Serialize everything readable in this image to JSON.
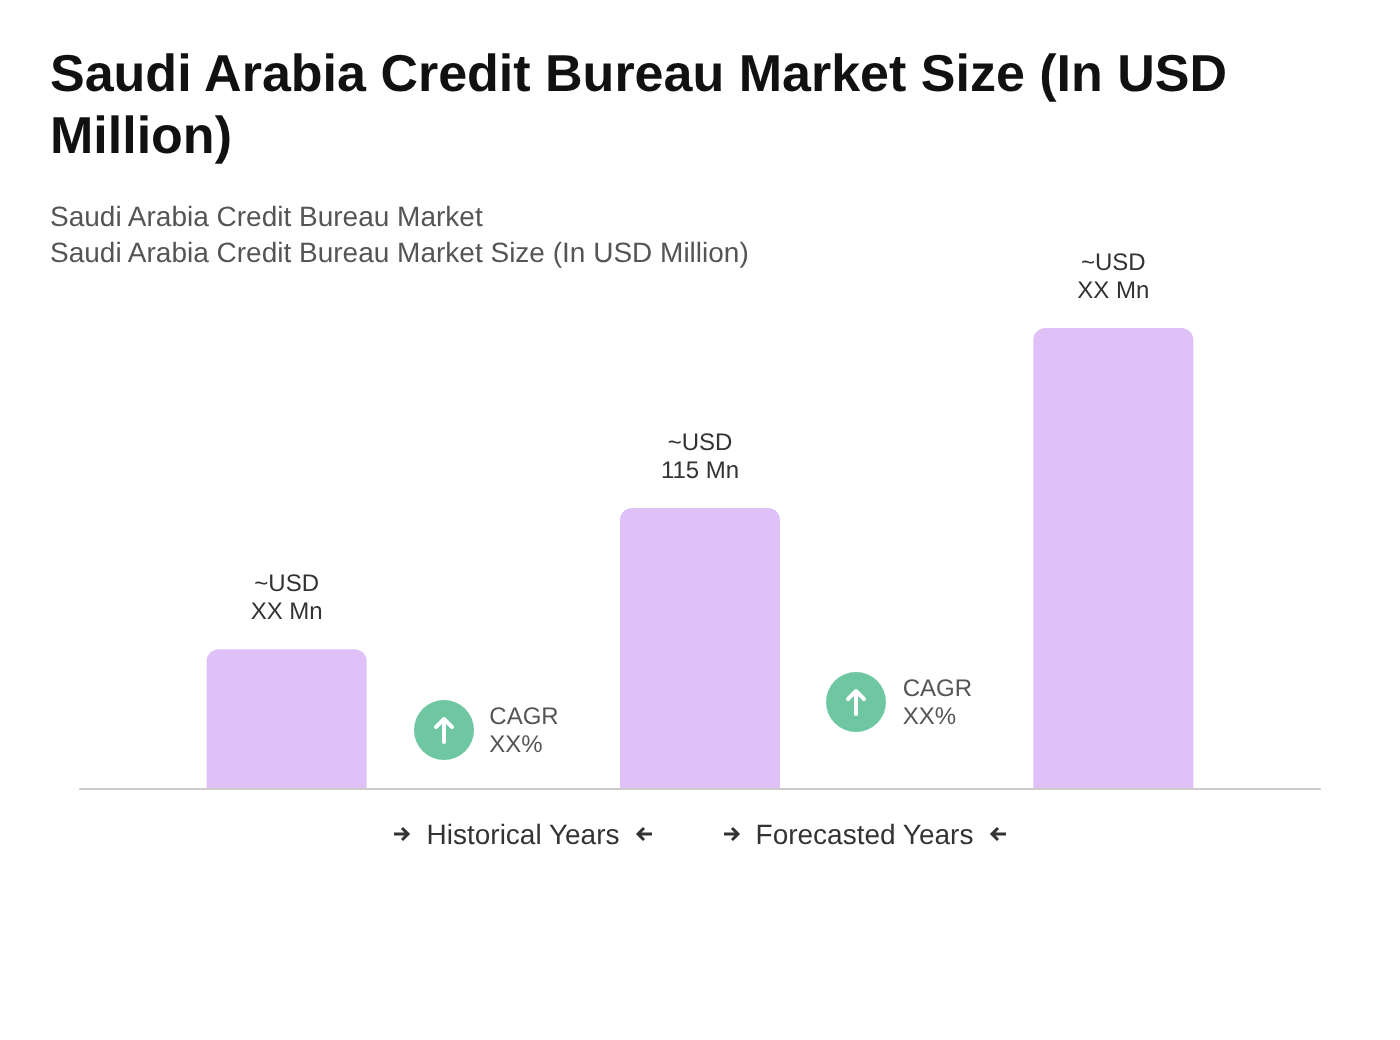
{
  "chart_data": {
    "type": "bar",
    "title": "Saudi Arabia Credit Bureau Market Size (In USD Million)",
    "subtitle": "Saudi Arabia Credit Bureau Market\nSaudi Arabia Credit Bureau Market Size (In USD Million)",
    "categories": [
      null,
      null,
      null
    ],
    "values": [
      57,
      115,
      189
    ],
    "tick_labels": false,
    "value_labels": [
      "~USD\nXX Mn",
      "~USD\n115 Mn",
      "~USD\nXX Mn"
    ],
    "color": "#dfc1f7",
    "annotations": [
      "CAGR\nXX%",
      "CAGR\nXX%",
      "Historical Years",
      "Forecasted Years"
    ]
  }
}
